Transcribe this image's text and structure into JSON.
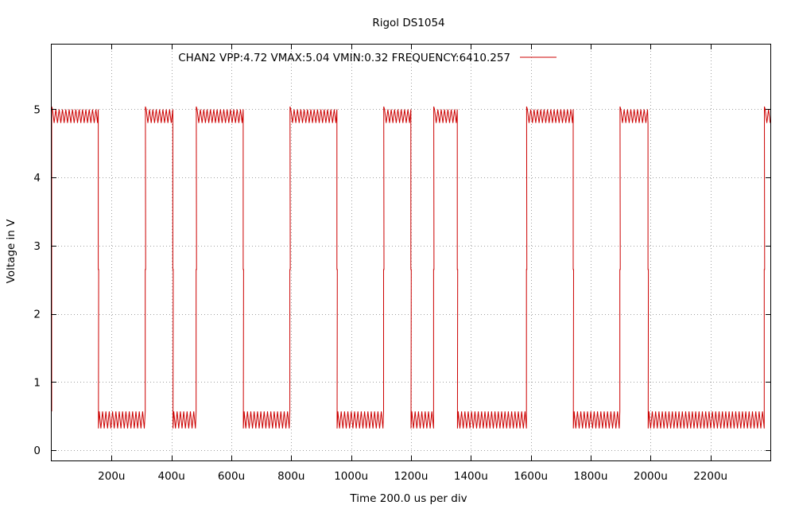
{
  "chart_data": {
    "type": "line",
    "title": "Rigol DS1054",
    "xlabel": "Time 200.0 us per div",
    "ylabel": "Voltage in V",
    "xlim": [
      0,
      2400
    ],
    "ylim": [
      -0.15,
      5.95
    ],
    "x_ticks": [
      200,
      400,
      600,
      800,
      1000,
      1200,
      1400,
      1600,
      1800,
      2000,
      2200
    ],
    "x_tick_labels": [
      "200u",
      "400u",
      "600u",
      "800u",
      "1000u",
      "1200u",
      "1400u",
      "1600u",
      "1800u",
      "2000u",
      "2200u"
    ],
    "y_ticks": [
      0,
      1,
      2,
      3,
      4,
      5
    ],
    "y_tick_labels": [
      "0",
      "1",
      "2",
      "3",
      "4",
      "5"
    ],
    "grid": true,
    "legend_position": "top",
    "series": [
      {
        "name": "CHAN2  VPP:4.72  VMAX:5.04  VMIN:0.32  FREQUENCY:6410.257",
        "color": "#cc0000",
        "high_level": [
          4.8,
          5.0
        ],
        "low_level": [
          0.32,
          0.57
        ],
        "edge_spike": 5.04,
        "transitions_us": [
          0,
          156,
          313,
          405,
          483,
          640,
          796,
          953,
          1109,
          1200,
          1276,
          1355,
          1586,
          1742,
          1898,
          1992,
          2380
        ],
        "initial_state": "low",
        "final_state": "high"
      }
    ]
  }
}
